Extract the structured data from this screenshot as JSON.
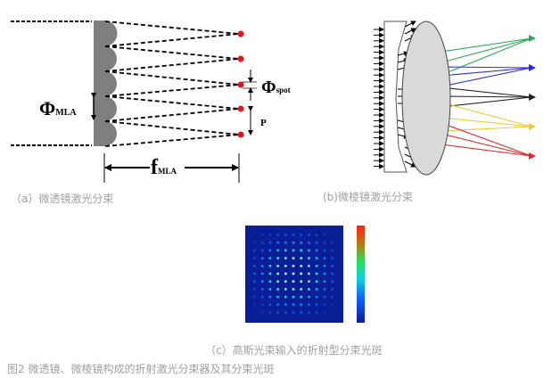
{
  "panel_a": {
    "caption": "（a）微透镜激光分束",
    "label_phi_mla": "Φ",
    "label_phi_mla_sub": "MLA",
    "label_phi_spot": "Φ",
    "label_phi_spot_sub": "spot",
    "label_p": "P",
    "label_f": "f",
    "label_f_sub": "MLA",
    "spot_color": "#e8141c",
    "lens_color": "#7f7f7f"
  },
  "panel_b": {
    "caption": "(b)微棱镜激光分束",
    "beam_colors": [
      "#2eaa5a",
      "#2a2ae0",
      "#222222",
      "#f0c830",
      "#e02a2a"
    ]
  },
  "panel_c": {
    "caption": "（c）高斯光束输入的折射型分束光斑",
    "background_color": "#0a1e96"
  },
  "figure_caption": "图2 微透镜、微棱镜构成的折射激光分束器及其分束光斑"
}
